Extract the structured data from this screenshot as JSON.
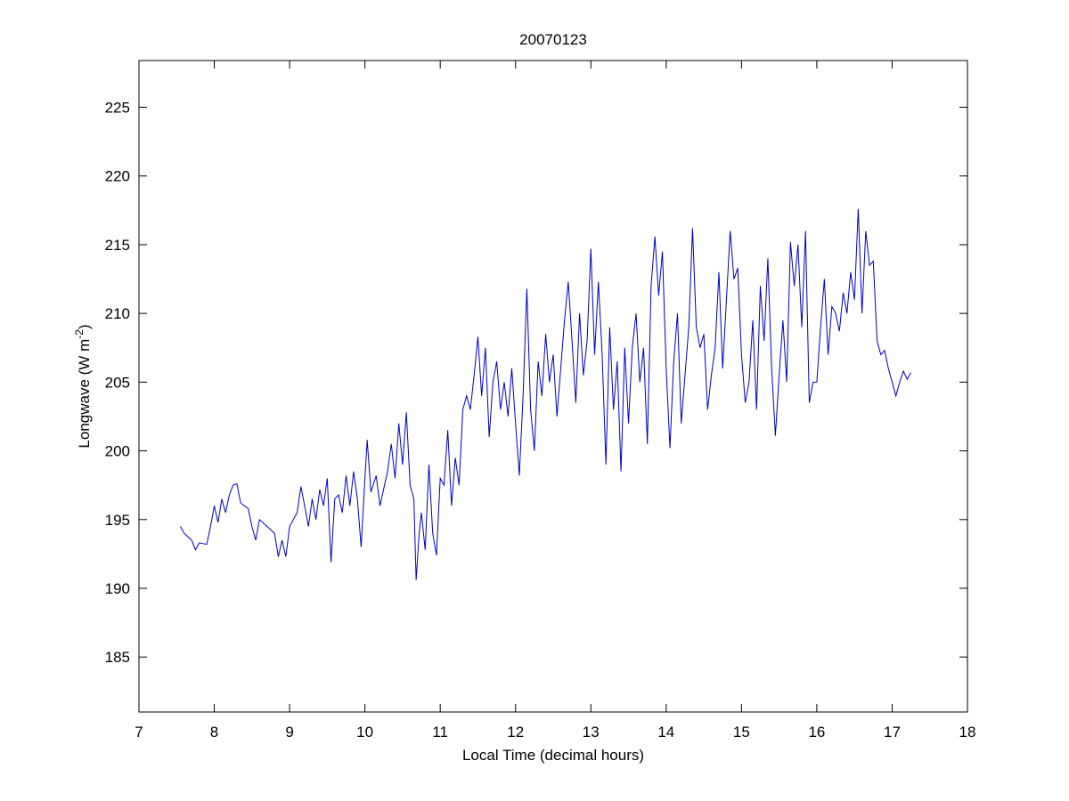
{
  "chart_data": {
    "type": "line",
    "title": "20070123",
    "xlabel": "Local Time (decimal hours)",
    "ylabel": [
      "Longwave (W m",
      "-2",
      ")"
    ],
    "xlim": [
      7,
      18
    ],
    "xticks": [
      7,
      8,
      9,
      10,
      11,
      12,
      13,
      14,
      15,
      16,
      17,
      18
    ],
    "ylim": [
      181,
      228.4
    ],
    "yticks": [
      185,
      190,
      195,
      200,
      205,
      210,
      215,
      220,
      225
    ],
    "series": [
      {
        "color": "#0000c0",
        "x": [
          7.55,
          7.6,
          7.7,
          7.75,
          7.8,
          7.9,
          7.95,
          8.0,
          8.05,
          8.1,
          8.15,
          8.2,
          8.25,
          8.3,
          8.35,
          8.45,
          8.5,
          8.55,
          8.6,
          8.7,
          8.8,
          8.85,
          8.9,
          8.95,
          9.0,
          9.1,
          9.15,
          9.2,
          9.25,
          9.3,
          9.35,
          9.4,
          9.45,
          9.5,
          9.55,
          9.6,
          9.65,
          9.7,
          9.75,
          9.8,
          9.85,
          9.9,
          9.95,
          10.0,
          10.03,
          10.08,
          10.15,
          10.2,
          10.3,
          10.35,
          10.4,
          10.45,
          10.5,
          10.55,
          10.6,
          10.65,
          10.68,
          10.72,
          10.75,
          10.8,
          10.85,
          10.9,
          10.95,
          11.0,
          11.05,
          11.1,
          11.15,
          11.2,
          11.25,
          11.3,
          11.35,
          11.4,
          11.45,
          11.5,
          11.55,
          11.6,
          11.65,
          11.7,
          11.75,
          11.8,
          11.85,
          11.9,
          11.95,
          12.0,
          12.05,
          12.1,
          12.15,
          12.2,
          12.25,
          12.3,
          12.35,
          12.4,
          12.45,
          12.5,
          12.55,
          12.6,
          12.65,
          12.7,
          12.75,
          12.8,
          12.85,
          12.9,
          12.95,
          13.0,
          13.05,
          13.1,
          13.15,
          13.2,
          13.25,
          13.3,
          13.35,
          13.4,
          13.45,
          13.5,
          13.55,
          13.6,
          13.65,
          13.7,
          13.75,
          13.8,
          13.85,
          13.9,
          13.95,
          14.0,
          14.05,
          14.1,
          14.15,
          14.2,
          14.25,
          14.3,
          14.35,
          14.4,
          14.45,
          14.5,
          14.55,
          14.6,
          14.65,
          14.7,
          14.75,
          14.8,
          14.85,
          14.9,
          14.95,
          15.0,
          15.05,
          15.1,
          15.15,
          15.2,
          15.25,
          15.3,
          15.35,
          15.4,
          15.45,
          15.5,
          15.55,
          15.6,
          15.65,
          15.7,
          15.75,
          15.8,
          15.85,
          15.9,
          15.95,
          16.0,
          16.05,
          16.1,
          16.15,
          16.2,
          16.25,
          16.3,
          16.35,
          16.4,
          16.45,
          16.5,
          16.55,
          16.6,
          16.65,
          16.7,
          16.75,
          16.8,
          16.85,
          16.9,
          16.95,
          17.0,
          17.05,
          17.1,
          17.15,
          17.2,
          17.25
        ],
        "values": [
          194.5,
          194,
          193.5,
          192.8,
          193.3,
          193.2,
          194.5,
          196,
          194.8,
          196.5,
          195.5,
          196.8,
          197.5,
          197.6,
          196.2,
          195.8,
          194.5,
          193.5,
          195,
          194.5,
          194,
          192.3,
          193.5,
          192.3,
          194.5,
          195.5,
          197.4,
          196,
          194.5,
          196.5,
          195,
          197.2,
          196,
          198,
          191.9,
          196.5,
          196.8,
          195.5,
          198.2,
          196,
          198.5,
          196.5,
          193,
          198,
          200.8,
          197,
          198.2,
          196,
          198.5,
          200.5,
          198,
          202,
          199,
          202.8,
          197.5,
          196.5,
          190.6,
          194,
          195.5,
          192.8,
          199,
          194,
          192.4,
          198,
          197.5,
          201.5,
          196,
          199.5,
          197.5,
          203,
          204,
          203,
          205.5,
          208.3,
          204,
          207.5,
          201,
          205,
          206.5,
          203,
          205,
          202.5,
          206,
          202,
          198.2,
          204,
          211.8,
          203,
          200,
          206.5,
          204,
          208.5,
          205,
          207,
          202.5,
          206,
          209.5,
          212.3,
          208,
          203.5,
          210,
          205.5,
          208,
          214.7,
          207,
          212.3,
          207,
          199,
          209,
          203,
          206.5,
          198.5,
          207.5,
          202,
          207.5,
          210,
          205,
          207.5,
          200.5,
          212,
          215.6,
          211.3,
          214.5,
          206,
          200.2,
          206.5,
          210,
          202,
          205.5,
          209,
          216.2,
          209,
          207.5,
          208.5,
          203,
          205.5,
          207.5,
          213,
          206,
          211,
          216,
          212.5,
          213.3,
          207,
          203.5,
          205,
          209.5,
          203,
          212,
          208,
          214,
          206,
          201.1,
          205.5,
          209.5,
          205,
          215.2,
          212,
          215,
          209,
          216,
          203.5,
          205,
          205,
          209,
          212.5,
          207,
          210.5,
          210,
          208.7,
          211.5,
          210,
          213,
          211,
          217.6,
          210,
          216,
          213.5,
          213.8,
          208,
          207,
          207.3,
          206,
          205,
          204,
          205,
          205.8,
          205.2,
          205.7
        ]
      }
    ]
  }
}
